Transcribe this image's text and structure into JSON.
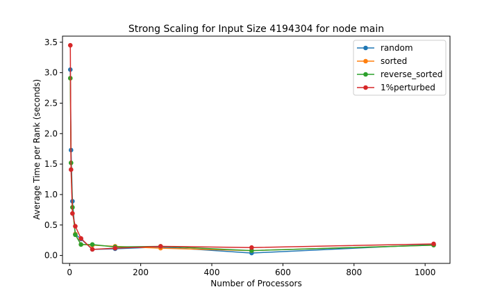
{
  "chart_data": {
    "type": "line",
    "title": "Strong Scaling for Input Size 4194304 for node main",
    "xlabel": "Number of Processors",
    "ylabel": "Average Time per Rank (seconds)",
    "xlim": [
      -20,
      1070
    ],
    "ylim": [
      -0.13,
      3.6
    ],
    "xticks": [
      0,
      200,
      400,
      600,
      800,
      1000
    ],
    "yticks": [
      0.0,
      0.5,
      1.0,
      1.5,
      2.0,
      2.5,
      3.0,
      3.5
    ],
    "grid": false,
    "legend_position": "top-right",
    "x": [
      2,
      4,
      8,
      16,
      32,
      64,
      128,
      256,
      512,
      1024
    ],
    "series": [
      {
        "name": "random",
        "color": "#1f77b4",
        "values": [
          3.05,
          1.73,
          0.89,
          0.35,
          0.27,
          0.1,
          0.11,
          0.14,
          0.04,
          0.18
        ]
      },
      {
        "name": "sorted",
        "color": "#ff7f0e",
        "values": [
          2.91,
          1.52,
          0.79,
          0.35,
          0.18,
          0.17,
          0.15,
          0.12,
          0.08,
          0.17
        ]
      },
      {
        "name": "reverse_sorted",
        "color": "#2ca02c",
        "values": [
          2.91,
          1.52,
          0.79,
          0.34,
          0.18,
          0.18,
          0.14,
          0.15,
          0.08,
          0.17
        ]
      },
      {
        "name": "1%perturbed",
        "color": "#d62728",
        "values": [
          3.45,
          1.41,
          0.69,
          0.48,
          0.28,
          0.1,
          0.12,
          0.15,
          0.13,
          0.19
        ]
      }
    ]
  }
}
